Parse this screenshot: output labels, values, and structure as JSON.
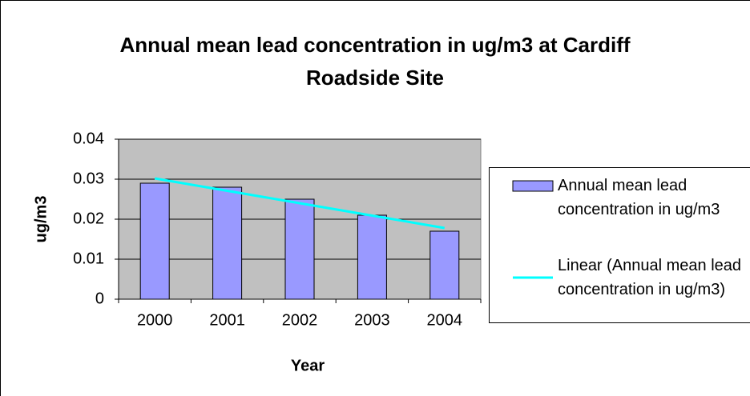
{
  "chart_data": {
    "type": "bar",
    "title": "Annual mean lead concentration in ug/m3 at Cardiff Roadside Site",
    "x_label": "Year",
    "y_label": "ug/m3",
    "categories": [
      "2000",
      "2001",
      "2002",
      "2003",
      "2004"
    ],
    "series": [
      {
        "name": "Annual mean lead concentration in ug/m3",
        "type": "bar",
        "color": "#9999ff",
        "values": [
          0.029,
          0.028,
          0.025,
          0.021,
          0.017
        ]
      },
      {
        "name": "Linear (Annual mean lead concentration in ug/m3)",
        "type": "line",
        "color": "#00ffff",
        "values": [
          0.0302,
          0.0271,
          0.024,
          0.0209,
          0.0178
        ]
      }
    ],
    "ylim": [
      0,
      0.04
    ],
    "yticks": [
      0,
      0.01,
      0.02,
      0.03,
      0.04
    ],
    "grid": true,
    "legend": "right"
  }
}
